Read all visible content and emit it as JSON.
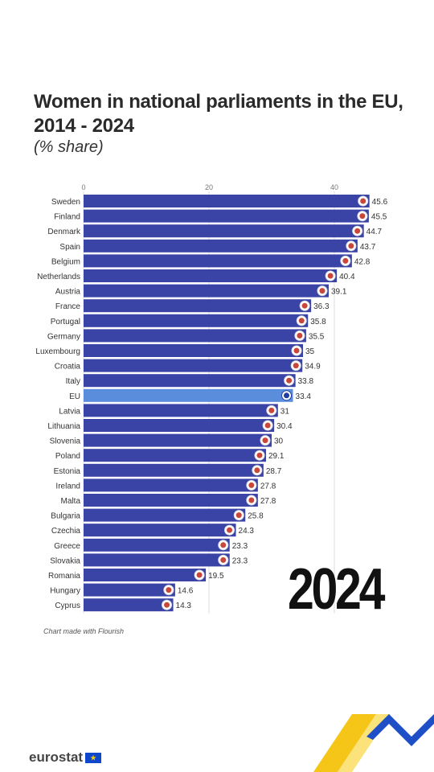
{
  "title": "Women in national parliaments in the EU, 2014 - 2024",
  "subtitle": "(% share)",
  "year_label": "2024",
  "credit": "Chart made with Flourish",
  "logo_text": "eurostat",
  "logo_icon": "eu-flag-icon",
  "colors": {
    "bar": "#3a43a6",
    "bar_highlight": "#5b8ddd",
    "gridline": "#dddddd",
    "accent_yellow": "#f5c518",
    "accent_blue": "#1f4fc7"
  },
  "chart_data": {
    "type": "bar",
    "orientation": "horizontal",
    "title": "Women in national parliaments in the EU, 2014 - 2024",
    "subtitle": "(% share)",
    "xlabel": "",
    "ylabel": "",
    "xlim": [
      0,
      45.6
    ],
    "x_ticks": [
      0,
      20,
      40
    ],
    "grid": true,
    "highlight": "EU",
    "categories": [
      "Sweden",
      "Finland",
      "Denmark",
      "Spain",
      "Belgium",
      "Netherlands",
      "Austria",
      "France",
      "Portugal",
      "Germany",
      "Luxembourg",
      "Croatia",
      "Italy",
      "EU",
      "Latvia",
      "Lithuania",
      "Slovenia",
      "Poland",
      "Estonia",
      "Ireland",
      "Malta",
      "Bulgaria",
      "Czechia",
      "Greece",
      "Slovakia",
      "Romania",
      "Hungary",
      "Cyprus"
    ],
    "values": [
      45.6,
      45.5,
      44.7,
      43.7,
      42.8,
      40.4,
      39.1,
      36.3,
      35.8,
      35.5,
      35,
      34.9,
      33.8,
      33.4,
      31,
      30.4,
      30,
      29.1,
      28.7,
      27.8,
      27.8,
      25.8,
      24.3,
      23.3,
      23.3,
      19.5,
      14.6,
      14.3
    ],
    "value_labels": [
      "45.6",
      "45.5",
      "44.7",
      "43.7",
      "42.8",
      "40.4",
      "39.1",
      "36.3",
      "35.8",
      "35.5",
      "35",
      "34.9",
      "33.8",
      "33.4",
      "31",
      "30.4",
      "30",
      "29.1",
      "28.7",
      "27.8",
      "27.8",
      "25.8",
      "24.3",
      "23.3",
      "23.3",
      "19.5",
      "14.6",
      "14.3"
    ]
  }
}
